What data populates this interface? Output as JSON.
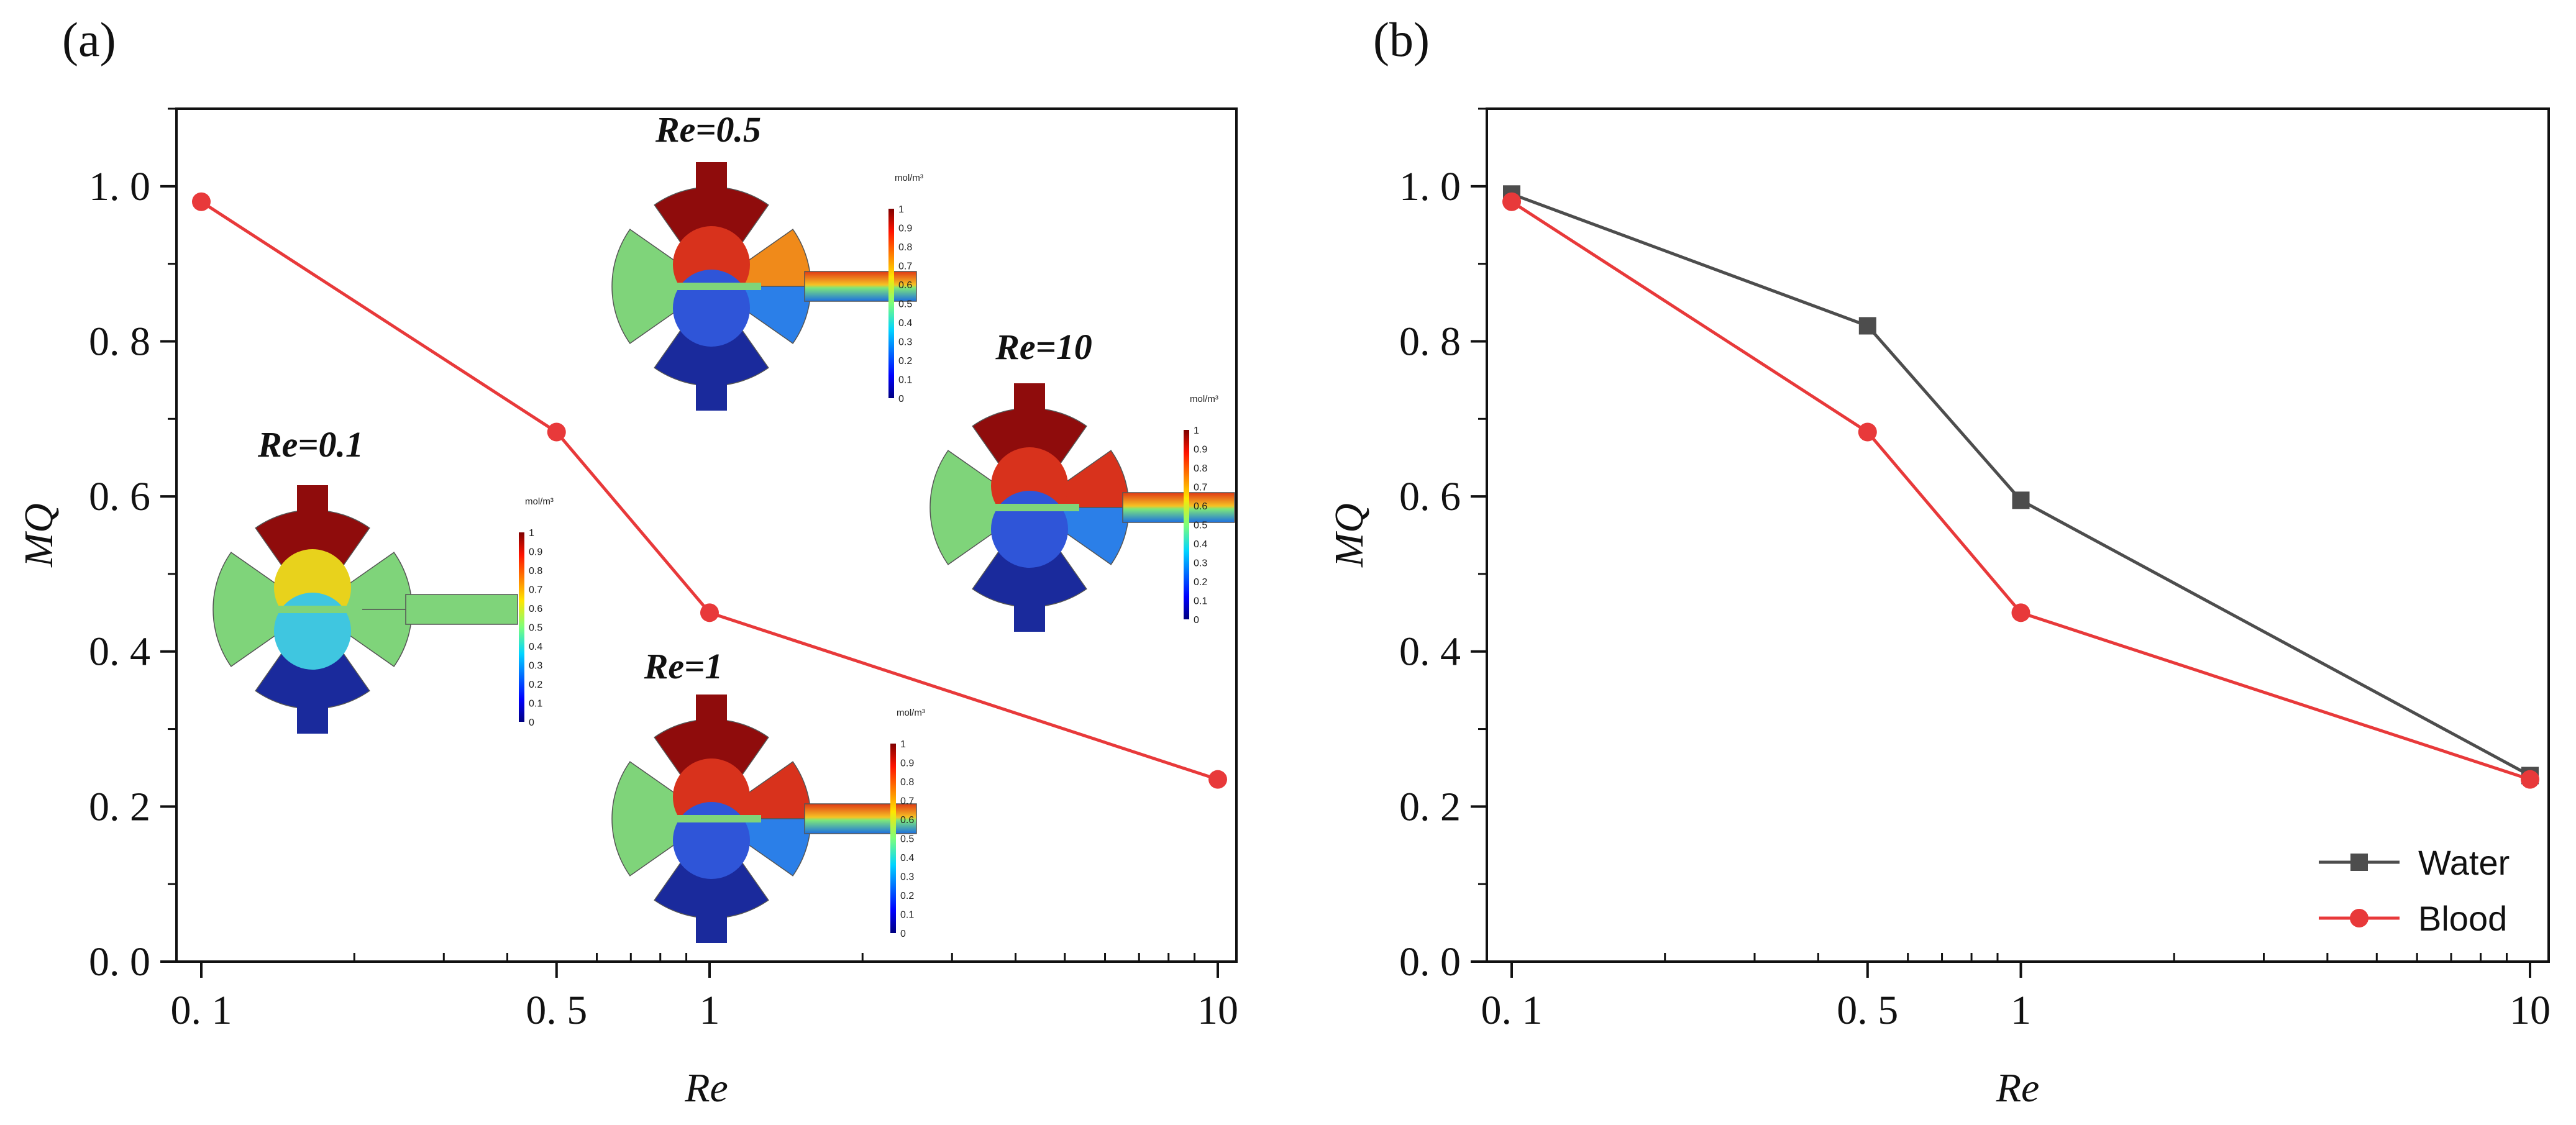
{
  "chart_data": [
    {
      "panel": "(a)",
      "type": "line",
      "xscale": "log",
      "x": [
        0.1,
        0.5,
        1,
        10
      ],
      "series": [
        {
          "name": "Blood",
          "values": [
            0.98,
            0.683,
            0.45,
            0.235
          ],
          "color": "#e8393a",
          "marker": "circle"
        }
      ],
      "xlabel": "Re",
      "ylabel": "MQ",
      "xlim": [
        0.1,
        10
      ],
      "ylim": [
        0.0,
        1.1
      ],
      "xticks": [
        0.1,
        0.5,
        1,
        10
      ],
      "xtick_labels": [
        "0. 1",
        "0. 5",
        "1",
        "10"
      ],
      "yticks": [
        0.0,
        0.2,
        0.4,
        0.6,
        0.8,
        1.0
      ],
      "ytick_labels": [
        "0. 0",
        "0. 2",
        "0. 4",
        "0. 6",
        "0. 8",
        "1. 0"
      ],
      "insets": [
        {
          "label": "Re=0.1",
          "case": 0.1,
          "colorbar_unit": "mol/m³",
          "colorbar_ticks": [
            "1",
            "0.9",
            "0.8",
            "0.7",
            "0.6",
            "0.5",
            "0.4",
            "0.3",
            "0.2",
            "0.1",
            "0"
          ]
        },
        {
          "label": "Re=0.5",
          "case": 0.5,
          "colorbar_unit": "mol/m³",
          "colorbar_ticks": [
            "1",
            "0.9",
            "0.8",
            "0.7",
            "0.6",
            "0.5",
            "0.4",
            "0.3",
            "0.2",
            "0.1",
            "0"
          ]
        },
        {
          "label": "Re=1",
          "case": 1,
          "colorbar_unit": "mol/m³",
          "colorbar_ticks": [
            "1",
            "0.9",
            "0.8",
            "0.7",
            "0.6",
            "0.5",
            "0.4",
            "0.3",
            "0.2",
            "0.1",
            "0"
          ]
        },
        {
          "label": "Re=10",
          "case": 10,
          "colorbar_unit": "mol/m³",
          "colorbar_ticks": [
            "1",
            "0.9",
            "0.8",
            "0.7",
            "0.6",
            "0.5",
            "0.4",
            "0.3",
            "0.2",
            "0.1",
            "0"
          ]
        }
      ]
    },
    {
      "panel": "(b)",
      "type": "line",
      "xscale": "log",
      "x": [
        0.1,
        0.5,
        1,
        10
      ],
      "series": [
        {
          "name": "Water",
          "values": [
            0.99,
            0.82,
            0.595,
            0.24
          ],
          "color": "#4d4d4d",
          "marker": "square"
        },
        {
          "name": "Blood",
          "values": [
            0.98,
            0.683,
            0.45,
            0.235
          ],
          "color": "#e8393a",
          "marker": "circle"
        }
      ],
      "xlabel": "Re",
      "ylabel": "MQ",
      "xlim": [
        0.1,
        10
      ],
      "ylim": [
        0.0,
        1.1
      ],
      "xticks": [
        0.1,
        0.5,
        1,
        10
      ],
      "xtick_labels": [
        "0. 1",
        "0. 5",
        "1",
        "10"
      ],
      "yticks": [
        0.0,
        0.2,
        0.4,
        0.6,
        0.8,
        1.0
      ],
      "ytick_labels": [
        "0. 0",
        "0. 2",
        "0. 4",
        "0. 6",
        "0. 8",
        "1. 0"
      ],
      "legend": {
        "placement": "bottom-right",
        "entries": [
          "Water",
          "Blood"
        ]
      }
    }
  ]
}
